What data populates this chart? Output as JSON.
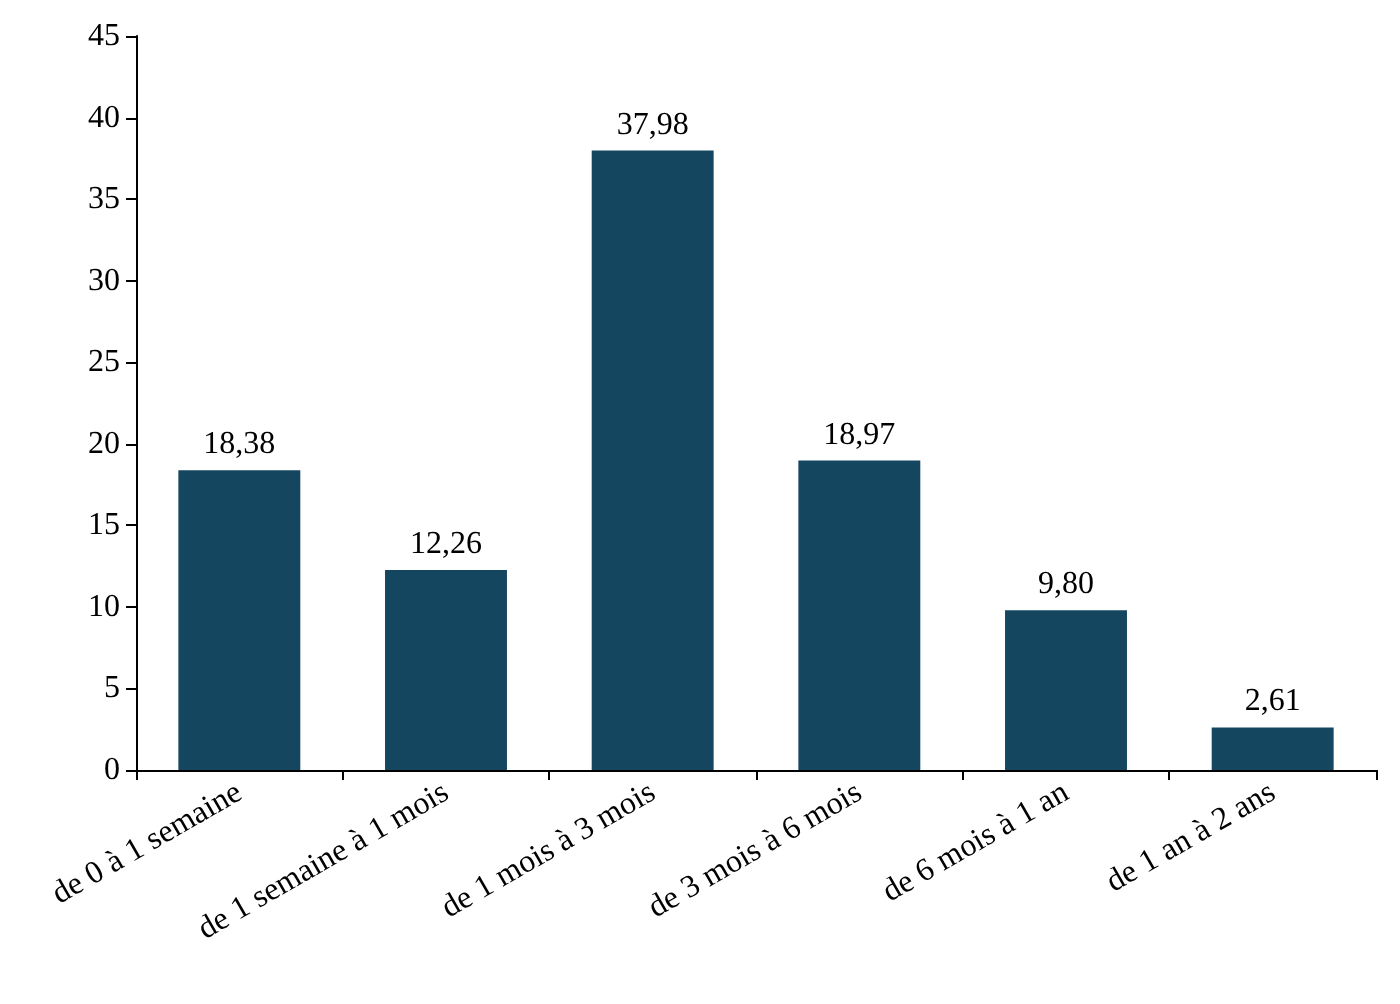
{
  "chart_data": {
    "type": "bar",
    "categories": [
      "de 0 à 1 semaine",
      "de 1 semaine à 1 mois",
      "de 1 mois à 3 mois",
      "de 3 mois à 6 mois",
      "de 6 mois à 1 an",
      "de 1 an à 2 ans"
    ],
    "values": [
      18.38,
      12.26,
      37.98,
      18.97,
      9.8,
      2.61
    ],
    "value_labels": [
      "18,38",
      "12,26",
      "37,98",
      "18,97",
      "9,80",
      "2,61"
    ],
    "color": "#154660",
    "ylim": [
      0,
      45
    ],
    "yticks": [
      0,
      5,
      10,
      15,
      20,
      25,
      30,
      35,
      40,
      45
    ]
  }
}
